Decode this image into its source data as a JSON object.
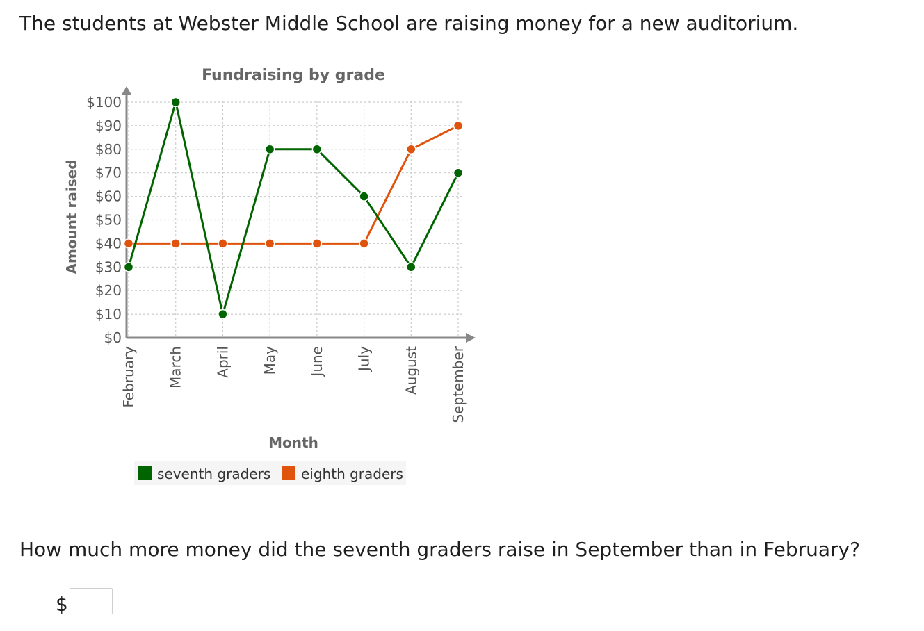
{
  "intro": "The students at Webster Middle School are raising money for a new auditorium.",
  "question": "How much more money did the seventh graders raise in September than in February?",
  "answer": {
    "prefix": "$",
    "value": ""
  },
  "chart_data": {
    "type": "line",
    "title": "Fundraising by grade",
    "xlabel": "Month",
    "ylabel": "Amount raised",
    "categories": [
      "February",
      "March",
      "April",
      "May",
      "June",
      "July",
      "August",
      "September"
    ],
    "ylim": [
      0,
      100
    ],
    "yticks": [
      0,
      10,
      20,
      30,
      40,
      50,
      60,
      70,
      80,
      90,
      100
    ],
    "ytick_labels": [
      "$0",
      "$10",
      "$20",
      "$30",
      "$40",
      "$50",
      "$60",
      "$70",
      "$80",
      "$90",
      "$100"
    ],
    "grid": true,
    "legend_position": "bottom",
    "series": [
      {
        "name": "seventh graders",
        "color": "#006400",
        "values": [
          30,
          100,
          10,
          80,
          80,
          60,
          30,
          70
        ]
      },
      {
        "name": "eighth graders",
        "color": "#e0530d",
        "values": [
          40,
          40,
          40,
          40,
          40,
          40,
          80,
          90
        ]
      }
    ]
  }
}
